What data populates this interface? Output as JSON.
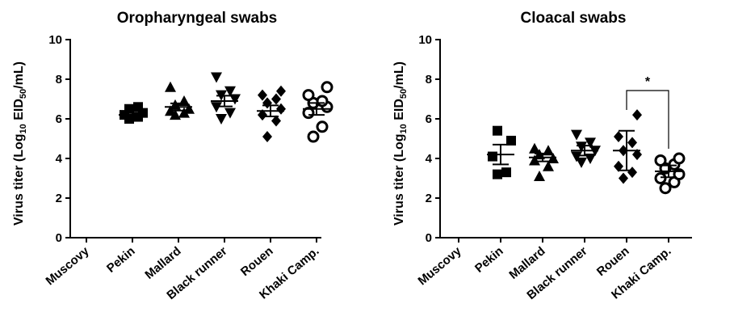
{
  "chart_data": [
    {
      "type": "scatter",
      "title": "Oropharyngeal swabs",
      "ylabel_prefix": "Virus titer (Log",
      "ylabel_sub1": "10",
      "ylabel_mid": " EID",
      "ylabel_sub2": "50",
      "ylabel_suffix": "/mL)",
      "ylim": [
        0,
        10
      ],
      "yticks": [
        "0",
        "2",
        "4",
        "6",
        "8",
        "10"
      ],
      "categories": [
        "Muscovy",
        "Pekin",
        "Mallard",
        "Black runner",
        "Rouen",
        "Khaki Camp."
      ],
      "markers": [
        "none",
        "square",
        "triangle-up",
        "triangle-down",
        "diamond",
        "circle"
      ],
      "groups": [
        {
          "points": [],
          "mean": null,
          "sem": null
        },
        {
          "points": [
            6.0,
            6.1,
            6.2,
            6.3,
            6.5,
            6.6
          ],
          "mean": 6.2,
          "sem": 0.1
        },
        {
          "points": [
            6.2,
            6.3,
            6.4,
            6.5,
            6.7,
            6.9,
            7.6
          ],
          "mean": 6.6,
          "sem": 0.18
        },
        {
          "points": [
            6.0,
            6.3,
            6.6,
            7.0,
            7.2,
            7.4,
            8.1
          ],
          "mean": 6.9,
          "sem": 0.27
        },
        {
          "points": [
            5.1,
            5.9,
            6.2,
            6.5,
            6.8,
            7.0,
            7.2,
            7.4
          ],
          "mean": 6.4,
          "sem": 0.28
        },
        {
          "points": [
            5.1,
            5.6,
            6.3,
            6.6,
            6.8,
            6.9,
            7.2,
            7.6
          ],
          "mean": 6.5,
          "sem": 0.3
        }
      ]
    },
    {
      "type": "scatter",
      "title": "Cloacal swabs",
      "ylabel_prefix": "Virus titer (Log",
      "ylabel_sub1": "10",
      "ylabel_mid": " EID",
      "ylabel_sub2": "50",
      "ylabel_suffix": "/mL)",
      "ylim": [
        0,
        10
      ],
      "yticks": [
        "0",
        "2",
        "4",
        "6",
        "8",
        "10"
      ],
      "categories": [
        "Muscovy",
        "Pekin",
        "Mallard",
        "Black runner",
        "Rouen",
        "Khaki Camp."
      ],
      "markers": [
        "none",
        "square",
        "triangle-up",
        "triangle-down",
        "diamond",
        "circle"
      ],
      "groups": [
        {
          "points": [],
          "mean": null,
          "sem": null
        },
        {
          "points": [
            3.2,
            3.3,
            4.1,
            4.9,
            5.4
          ],
          "mean": 4.2,
          "sem": 0.5
        },
        {
          "points": [
            3.1,
            3.6,
            3.9,
            4.0,
            4.2,
            4.4,
            4.5
          ],
          "mean": 4.05,
          "sem": 0.2
        },
        {
          "points": [
            3.8,
            4.0,
            4.1,
            4.4,
            4.6,
            4.8,
            5.2
          ],
          "mean": 4.4,
          "sem": 0.25
        },
        {
          "points": [
            3.0,
            3.3,
            3.6,
            4.2,
            4.4,
            4.8,
            5.1,
            6.2
          ],
          "mean": 4.4,
          "sem": 1.0
        },
        {
          "points": [
            2.5,
            2.8,
            3.0,
            3.2,
            3.5,
            3.7,
            3.9,
            4.0
          ],
          "mean": 3.35,
          "sem": 0.3
        }
      ],
      "annotation": {
        "text": "*",
        "from_category": "Rouen",
        "to_category": "Khaki Camp."
      }
    }
  ]
}
